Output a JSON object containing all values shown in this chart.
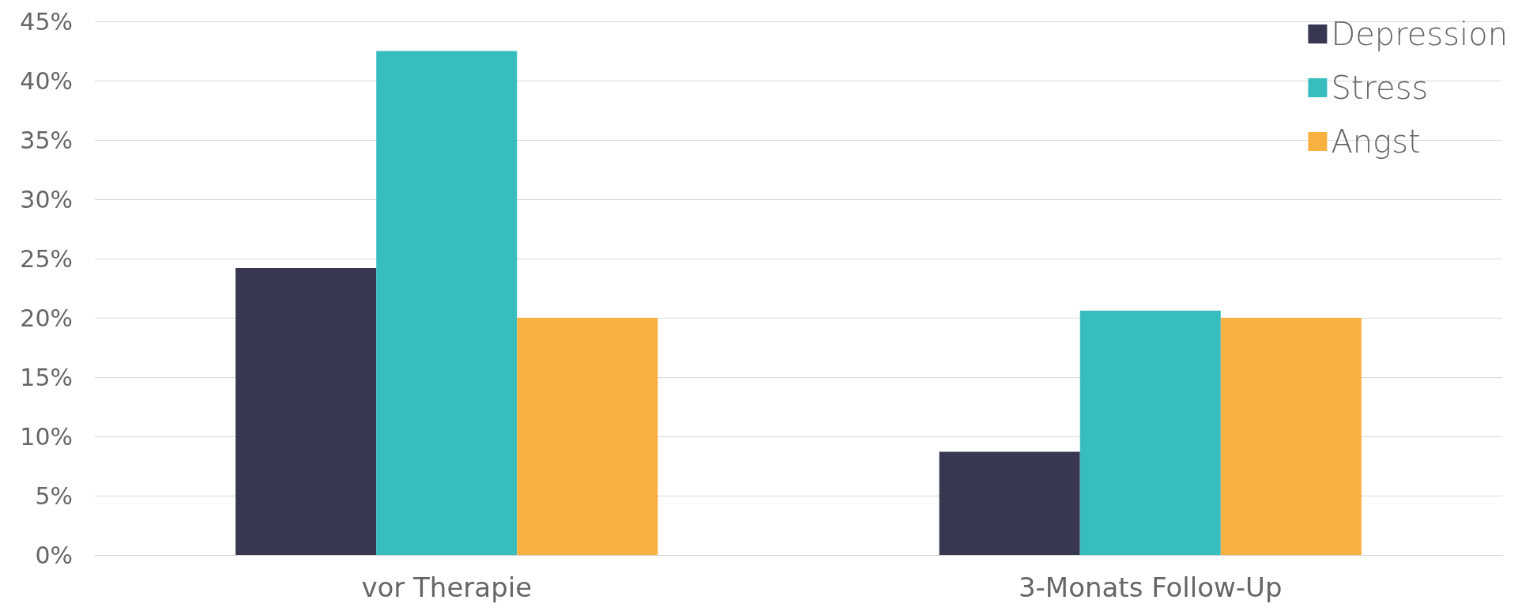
{
  "chart_data": {
    "type": "bar",
    "categories": [
      "vor Therapie",
      "3-Monats Follow-Up"
    ],
    "series": [
      {
        "name": "Depression",
        "color": "#373752",
        "values": [
          24.2,
          8.7
        ]
      },
      {
        "name": "Stress",
        "color": "#38bdbf",
        "values": [
          42.5,
          20.6
        ]
      },
      {
        "name": "Angst",
        "color": "#f8b140",
        "values": [
          20.0,
          20.0
        ]
      }
    ],
    "ylim": [
      0,
      45
    ],
    "yticks": [
      {
        "value": 0,
        "label": "0%"
      },
      {
        "value": 5,
        "label": "5%"
      },
      {
        "value": 10,
        "label": "10%"
      },
      {
        "value": 15,
        "label": "15%"
      },
      {
        "value": 20,
        "label": "20%"
      },
      {
        "value": 25,
        "label": "25%"
      },
      {
        "value": 30,
        "label": "30%"
      },
      {
        "value": 35,
        "label": "35%"
      },
      {
        "value": 40,
        "label": "40%"
      },
      {
        "value": 45,
        "label": "45%"
      }
    ],
    "grid": "y",
    "legend": "top right"
  }
}
